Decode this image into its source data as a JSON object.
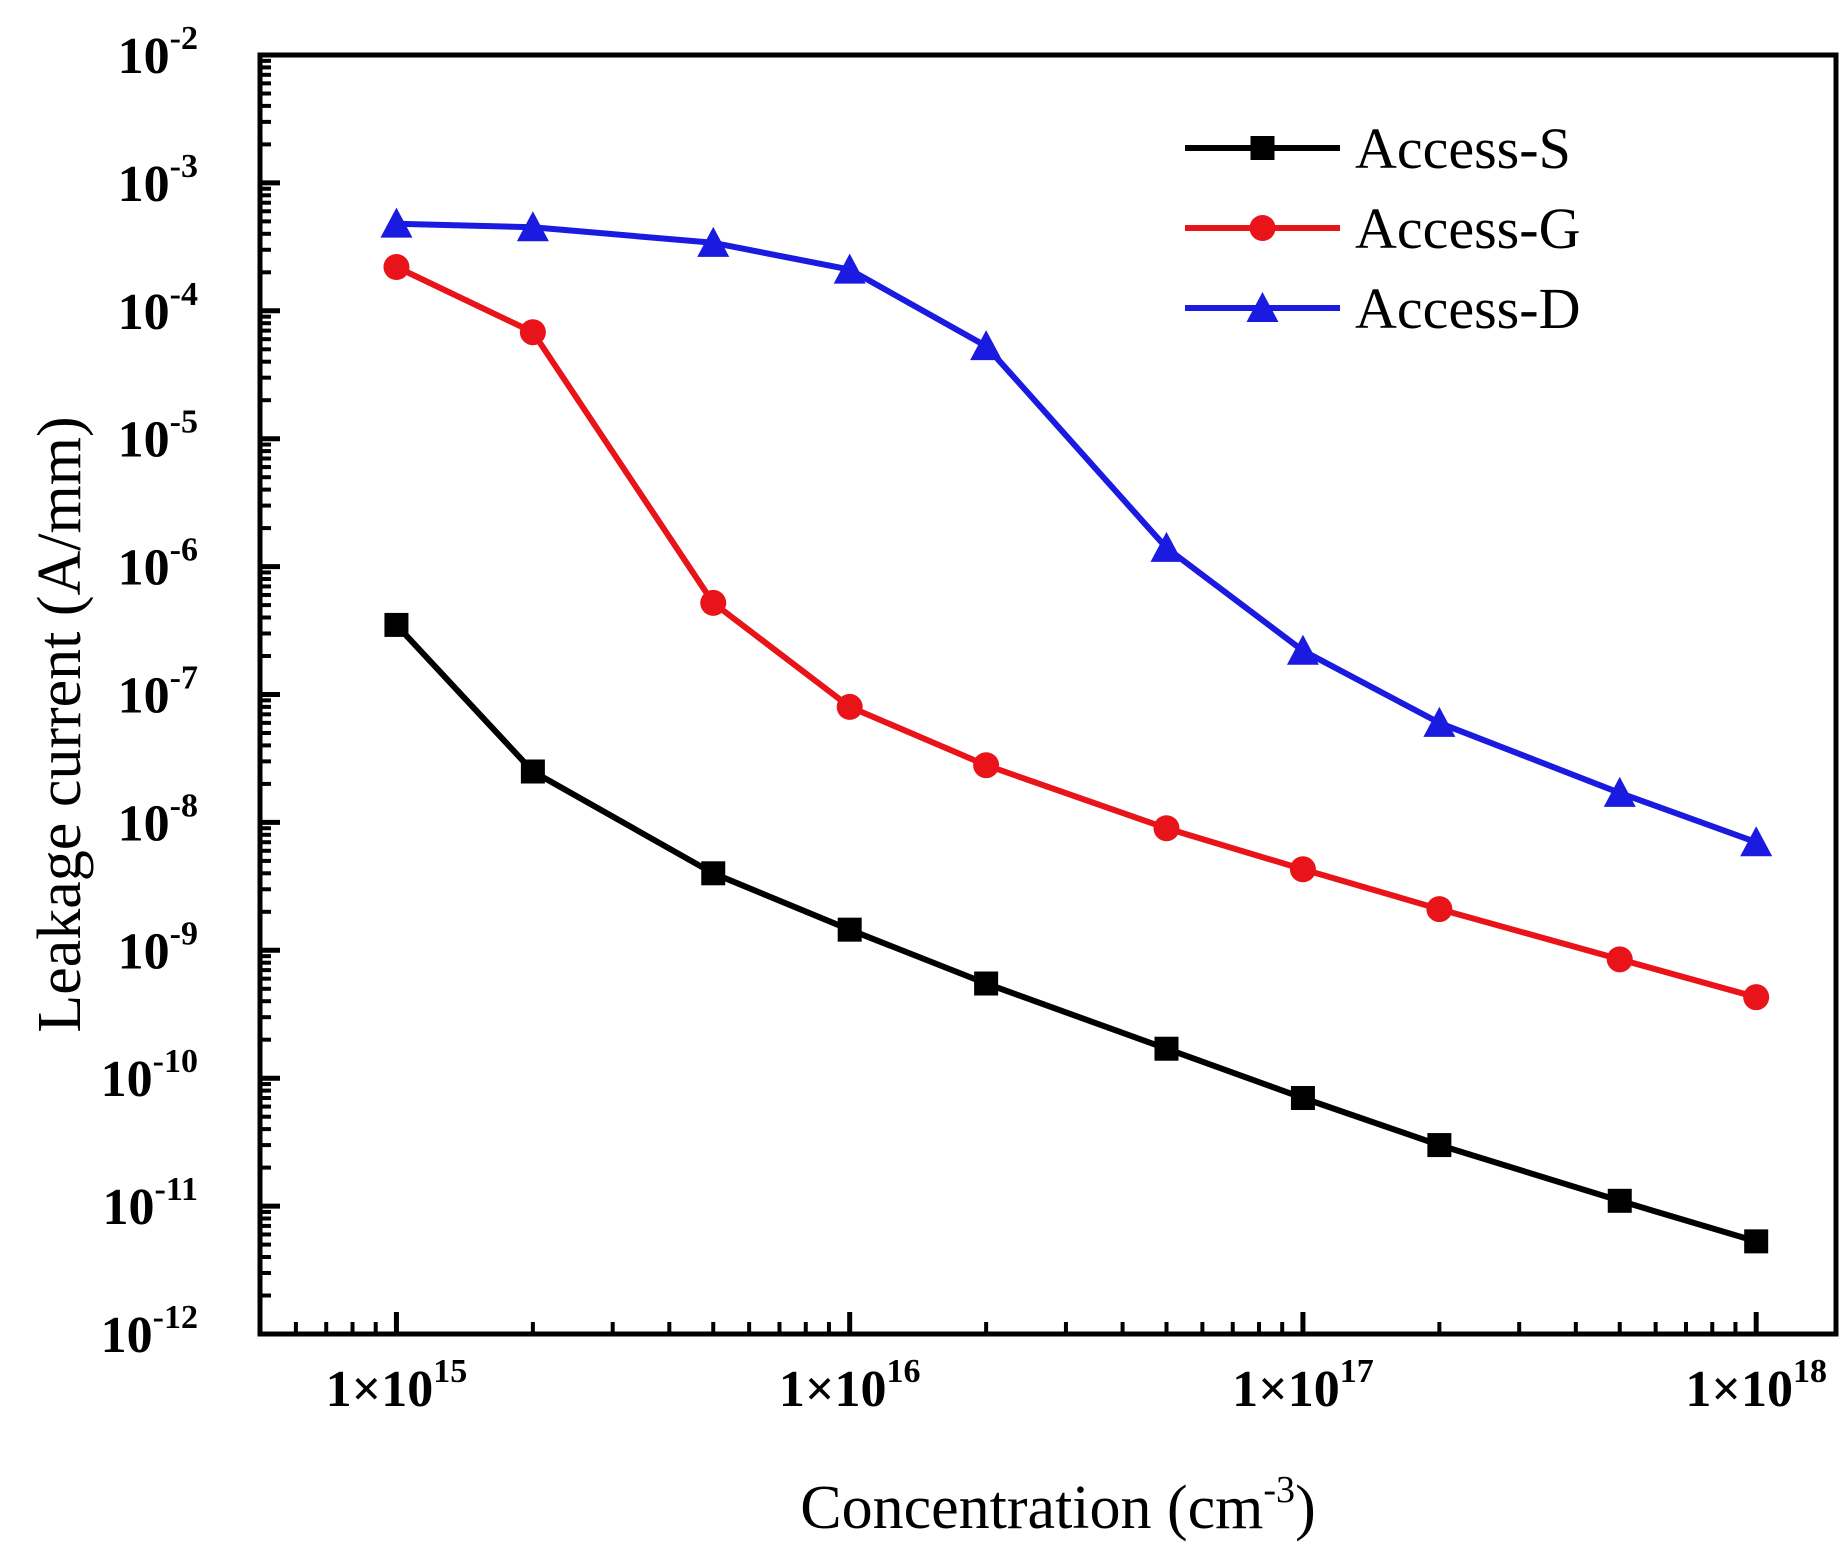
{
  "chart_data": {
    "type": "line",
    "title": "",
    "xlabel": {
      "base": "Concentration (cm",
      "sup": "-3",
      "tail": ")"
    },
    "ylabel": "Leakage current (A/mm)",
    "xscale": "log",
    "yscale": "log",
    "xlim": [
      500000000000000.0,
      1.5e+18
    ],
    "ylim": [
      1e-12,
      0.01
    ],
    "legend_position": "top-right",
    "x_ticks": [
      {
        "value": 1000000000000000.0,
        "base": "1×10",
        "exp": "15"
      },
      {
        "value": 1e+16,
        "base": "1×10",
        "exp": "16"
      },
      {
        "value": 1e+17,
        "base": "1×10",
        "exp": "17"
      },
      {
        "value": 1e+18,
        "base": "1×10",
        "exp": "18"
      }
    ],
    "y_ticks": [
      {
        "value": 0.01,
        "base": "10",
        "exp": "-2"
      },
      {
        "value": 0.001,
        "base": "10",
        "exp": "-3"
      },
      {
        "value": 0.0001,
        "base": "10",
        "exp": "-4"
      },
      {
        "value": 1e-05,
        "base": "10",
        "exp": "-5"
      },
      {
        "value": 1e-06,
        "base": "10",
        "exp": "-6"
      },
      {
        "value": 1e-07,
        "base": "10",
        "exp": "-7"
      },
      {
        "value": 1e-08,
        "base": "10",
        "exp": "-8"
      },
      {
        "value": 1e-09,
        "base": "10",
        "exp": "-9"
      },
      {
        "value": 1e-10,
        "base": "10",
        "exp": "-10"
      },
      {
        "value": 1e-11,
        "base": "10",
        "exp": "-11"
      },
      {
        "value": 1e-12,
        "base": "10",
        "exp": "-12"
      }
    ],
    "x": [
      1000000000000000.0,
      2000000000000000.0,
      5000000000000000.0,
      1e+16,
      2e+16,
      5e+16,
      1e+17,
      2e+17,
      5e+17,
      1e+18
    ],
    "series": [
      {
        "name": "Access-S",
        "color": "#000000",
        "marker": "square",
        "values": [
          3.5e-07,
          2.5e-08,
          4e-09,
          1.45e-09,
          5.5e-10,
          1.7e-10,
          7e-11,
          3e-11,
          1.1e-11,
          5.3e-12
        ]
      },
      {
        "name": "Access-G",
        "color": "#e8141a",
        "marker": "circle",
        "values": [
          0.00022,
          6.8e-05,
          5.2e-07,
          8e-08,
          2.8e-08,
          9e-09,
          4.3e-09,
          2.1e-09,
          8.5e-10,
          4.3e-10
        ]
      },
      {
        "name": "Access-D",
        "color": "#1a1ae0",
        "marker": "triangle",
        "values": [
          0.00048,
          0.00045,
          0.00034,
          0.00021,
          5.3e-05,
          1.4e-06,
          2.2e-07,
          6e-08,
          1.7e-08,
          7e-09
        ]
      }
    ]
  }
}
